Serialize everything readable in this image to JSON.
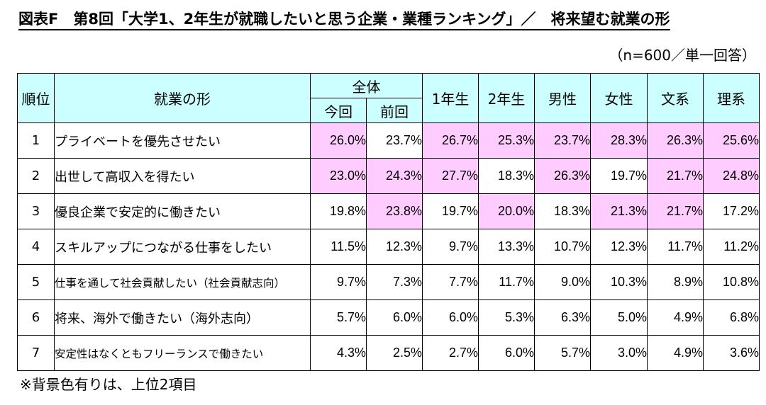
{
  "title": "図表F　第8回「大学1、2年生が就職したいと思う企業・業種ランキング」／　将来望む就業の形",
  "sample_note": "（n=600／単一回答）",
  "headers": {
    "rank": "順位",
    "form": "就業の形",
    "overall": "全体",
    "current": "今回",
    "previous": "前回",
    "year1": "1年生",
    "year2": "2年生",
    "male": "男性",
    "female": "女性",
    "humanities": "文系",
    "science": "理系"
  },
  "highlight_color": "#ffccff",
  "header_color": "#ccffff",
  "rows": [
    {
      "rank": "1",
      "form": "プライベートを優先させたい",
      "values": [
        "26.0%",
        "23.7%",
        "26.7%",
        "25.3%",
        "23.7%",
        "28.3%",
        "26.3%",
        "25.6%"
      ],
      "highlight": [
        true,
        false,
        true,
        true,
        true,
        true,
        true,
        true
      ]
    },
    {
      "rank": "2",
      "form": "出世して高収入を得たい",
      "values": [
        "23.0%",
        "24.3%",
        "27.7%",
        "18.3%",
        "26.3%",
        "19.7%",
        "21.7%",
        "24.8%"
      ],
      "highlight": [
        true,
        true,
        true,
        false,
        true,
        false,
        true,
        true
      ]
    },
    {
      "rank": "3",
      "form": "優良企業で安定的に働きたい",
      "values": [
        "19.8%",
        "23.8%",
        "19.7%",
        "20.0%",
        "18.3%",
        "21.3%",
        "21.7%",
        "17.2%"
      ],
      "highlight": [
        false,
        true,
        false,
        true,
        false,
        true,
        true,
        false
      ]
    },
    {
      "rank": "4",
      "form": "スキルアップにつながる仕事をしたい",
      "values": [
        "11.5%",
        "12.3%",
        "9.7%",
        "13.3%",
        "10.7%",
        "12.3%",
        "11.7%",
        "11.2%"
      ],
      "highlight": [
        false,
        false,
        false,
        false,
        false,
        false,
        false,
        false
      ]
    },
    {
      "rank": "5",
      "form": "仕事を通して社会貢献したい（社会貢献志向）",
      "values": [
        "9.7%",
        "7.3%",
        "7.7%",
        "11.7%",
        "9.0%",
        "10.3%",
        "8.9%",
        "10.8%"
      ],
      "highlight": [
        false,
        false,
        false,
        false,
        false,
        false,
        false,
        false
      ]
    },
    {
      "rank": "6",
      "form": "将来、海外で働きたい（海外志向）",
      "values": [
        "5.7%",
        "6.0%",
        "6.0%",
        "5.3%",
        "6.3%",
        "5.0%",
        "4.9%",
        "6.8%"
      ],
      "highlight": [
        false,
        false,
        false,
        false,
        false,
        false,
        false,
        false
      ]
    },
    {
      "rank": "7",
      "form": "安定性はなくともフリーランスで働きたい",
      "values": [
        "4.3%",
        "2.5%",
        "2.7%",
        "6.0%",
        "5.7%",
        "3.0%",
        "4.9%",
        "3.6%"
      ],
      "highlight": [
        false,
        false,
        false,
        false,
        false,
        false,
        false,
        false
      ]
    }
  ],
  "footnote": "※背景色有りは、上位2項目"
}
